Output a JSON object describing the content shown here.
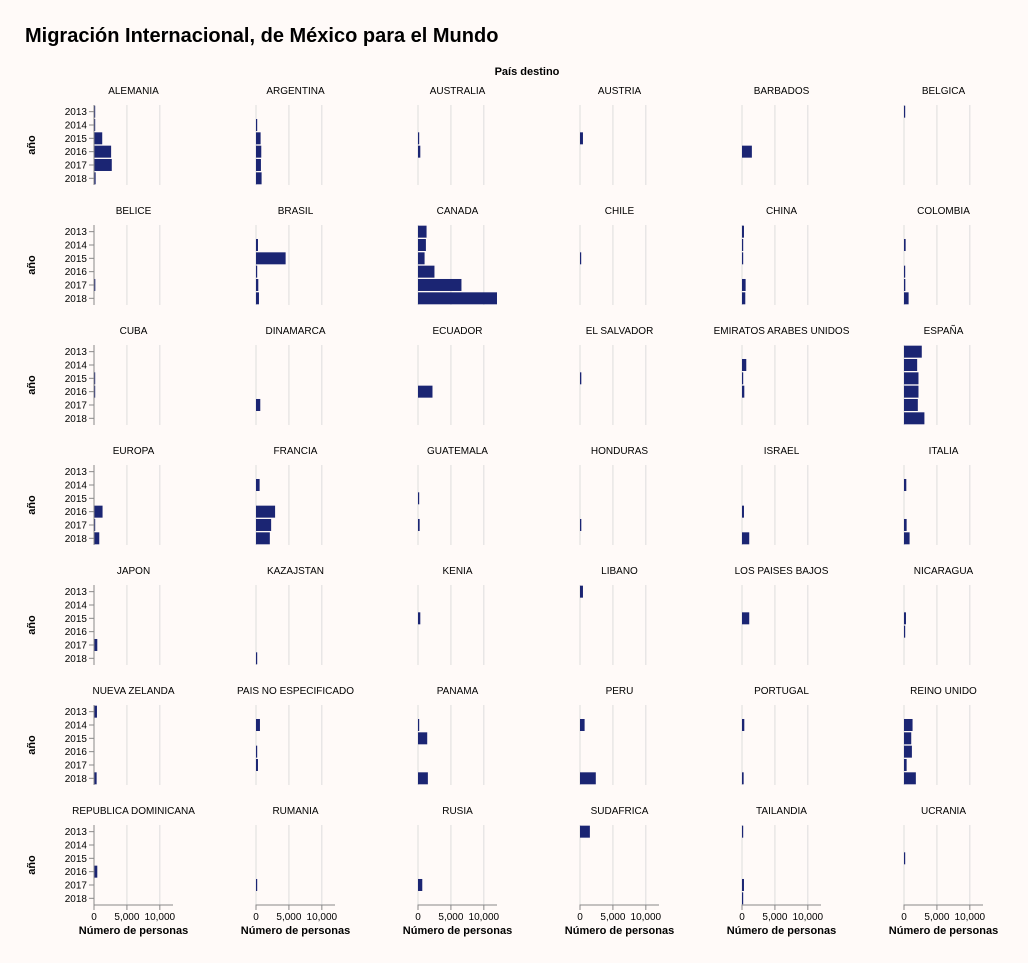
{
  "chart_data": {
    "type": "bar",
    "title": "Migración Internacional, de México para el Mundo",
    "column_header": "País destino",
    "ylabel": "año",
    "xlabel": "Número de personas",
    "years": [
      "2013",
      "2014",
      "2015",
      "2016",
      "2017",
      "2018"
    ],
    "x_ticks": [
      "0",
      "5,000",
      "10,000"
    ],
    "xlim": [
      0,
      12000
    ],
    "grid": true,
    "bar_color": "#1b2573",
    "panels": [
      {
        "name": "ALEMANIA",
        "values": [
          150,
          100,
          1250,
          2600,
          2700,
          250
        ]
      },
      {
        "name": "ARGENTINA",
        "values": [
          0,
          50,
          700,
          800,
          750,
          850
        ]
      },
      {
        "name": "AUSTRALIA",
        "values": [
          0,
          0,
          100,
          350,
          0,
          0
        ]
      },
      {
        "name": "AUSTRIA",
        "values": [
          0,
          0,
          450,
          0,
          0,
          0
        ]
      },
      {
        "name": "BARBADOS",
        "values": [
          0,
          0,
          0,
          1500,
          0,
          0
        ]
      },
      {
        "name": "BELGICA",
        "values": [
          150,
          0,
          0,
          0,
          0,
          0
        ]
      },
      {
        "name": "BELICE",
        "values": [
          0,
          0,
          0,
          0,
          200,
          0
        ]
      },
      {
        "name": "BRASIL",
        "values": [
          0,
          300,
          4500,
          150,
          350,
          450
        ]
      },
      {
        "name": "CANADA",
        "values": [
          1300,
          1200,
          1000,
          2500,
          6600,
          12000
        ]
      },
      {
        "name": "CHILE",
        "values": [
          0,
          0,
          150,
          0,
          0,
          0
        ]
      },
      {
        "name": "CHINA",
        "values": [
          300,
          150,
          100,
          0,
          550,
          500
        ]
      },
      {
        "name": "COLOMBIA",
        "values": [
          0,
          250,
          0,
          50,
          200,
          700
        ]
      },
      {
        "name": "CUBA",
        "values": [
          0,
          0,
          50,
          150,
          0,
          0
        ]
      },
      {
        "name": "DINAMARCA",
        "values": [
          0,
          0,
          0,
          0,
          650,
          0
        ]
      },
      {
        "name": "ECUADOR",
        "values": [
          0,
          0,
          0,
          2200,
          0,
          0
        ]
      },
      {
        "name": "EL SALVADOR",
        "values": [
          0,
          0,
          200,
          0,
          0,
          0
        ]
      },
      {
        "name": "EMIRATOS ARABES UNIDOS",
        "values": [
          0,
          650,
          150,
          350,
          0,
          0
        ]
      },
      {
        "name": "ESPAÑA",
        "values": [
          2700,
          2000,
          2200,
          2200,
          2100,
          3100
        ]
      },
      {
        "name": "EUROPA",
        "values": [
          0,
          0,
          0,
          1300,
          100,
          800
        ]
      },
      {
        "name": "FRANCIA",
        "values": [
          0,
          550,
          0,
          2900,
          2300,
          2100
        ]
      },
      {
        "name": "GUATEMALA",
        "values": [
          0,
          0,
          100,
          0,
          250,
          0
        ]
      },
      {
        "name": "HONDURAS",
        "values": [
          0,
          0,
          0,
          0,
          200,
          0
        ]
      },
      {
        "name": "ISRAEL",
        "values": [
          0,
          0,
          0,
          300,
          0,
          1100
        ]
      },
      {
        "name": "ITALIA",
        "values": [
          0,
          350,
          0,
          0,
          400,
          850
        ]
      },
      {
        "name": "JAPON",
        "values": [
          0,
          0,
          0,
          0,
          500,
          0
        ]
      },
      {
        "name": "KAZAJSTAN",
        "values": [
          0,
          0,
          0,
          0,
          0,
          100
        ]
      },
      {
        "name": "KENIA",
        "values": [
          0,
          0,
          350,
          0,
          0,
          0
        ]
      },
      {
        "name": "LIBANO",
        "values": [
          450,
          0,
          0,
          0,
          0,
          0
        ]
      },
      {
        "name": "LOS PAISES BAJOS",
        "values": [
          0,
          0,
          1100,
          0,
          0,
          0
        ]
      },
      {
        "name": "NICARAGUA",
        "values": [
          0,
          0,
          300,
          100,
          0,
          0
        ]
      },
      {
        "name": "NUEVA ZELANDA",
        "values": [
          450,
          0,
          0,
          0,
          0,
          400
        ]
      },
      {
        "name": "PAIS NO ESPECIFICADO",
        "values": [
          0,
          600,
          0,
          100,
          300,
          0
        ]
      },
      {
        "name": "PANAMA",
        "values": [
          0,
          150,
          1400,
          0,
          0,
          1500
        ]
      },
      {
        "name": "PERU",
        "values": [
          0,
          700,
          0,
          0,
          0,
          2400
        ]
      },
      {
        "name": "PORTUGAL",
        "values": [
          0,
          350,
          0,
          0,
          0,
          250
        ]
      },
      {
        "name": "REINO UNIDO",
        "values": [
          0,
          1300,
          1100,
          1200,
          400,
          1800
        ]
      },
      {
        "name": "REPUBLICA DOMINICANA",
        "values": [
          0,
          0,
          0,
          500,
          0,
          0
        ]
      },
      {
        "name": "RUMANIA",
        "values": [
          0,
          0,
          0,
          0,
          100,
          0
        ]
      },
      {
        "name": "RUSIA",
        "values": [
          0,
          0,
          0,
          0,
          650,
          0
        ]
      },
      {
        "name": "SUDAFRICA",
        "values": [
          1500,
          0,
          0,
          0,
          0,
          0
        ]
      },
      {
        "name": "TAILANDIA",
        "values": [
          150,
          0,
          0,
          0,
          300,
          100
        ]
      },
      {
        "name": "UCRANIA",
        "values": [
          0,
          0,
          150,
          0,
          0,
          0
        ]
      }
    ]
  }
}
